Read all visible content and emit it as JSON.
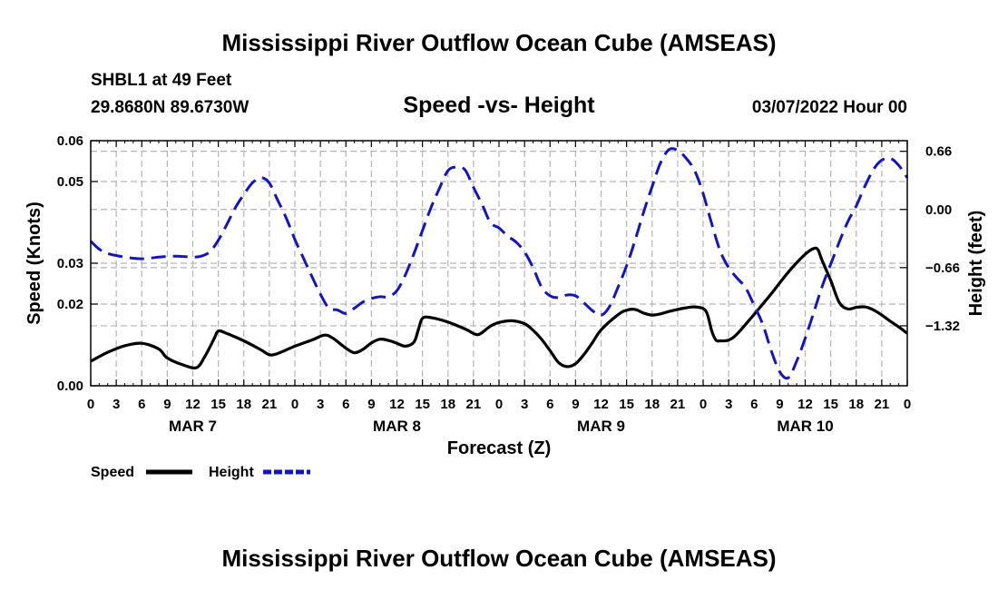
{
  "page": {
    "main_title": "Mississippi River Outflow Ocean Cube (AMSEAS)",
    "repeat_title": "Mississippi River Outflow Ocean Cube (AMSEAS)",
    "station": "SHBL1 at 49 Feet",
    "location": "29.8680N  89.6730W",
    "timestamp": "03/07/2022 Hour 00"
  },
  "colors": {
    "speed": "#000000",
    "height": "#1515c0",
    "grid": "#b4b4b4"
  },
  "chart_data": {
    "type": "line",
    "title": "Speed -vs- Height",
    "xlabel": "Forecast (Z)",
    "ylabel": "Speed (Knots)",
    "y2label": "Height (feet)",
    "x_hours_from_start": [
      0,
      96
    ],
    "x_tick_hours": [
      0,
      3,
      6,
      9,
      12,
      15,
      18,
      21,
      24,
      27,
      30,
      33,
      36,
      39,
      42,
      45,
      48,
      51,
      54,
      57,
      60,
      63,
      66,
      69,
      72,
      75,
      78,
      81,
      84,
      87,
      90,
      93,
      96
    ],
    "x_tick_labels": [
      "0",
      "3",
      "6",
      "9",
      "12",
      "15",
      "18",
      "21",
      "0",
      "3",
      "6",
      "9",
      "12",
      "15",
      "18",
      "21",
      "0",
      "3",
      "6",
      "9",
      "12",
      "15",
      "18",
      "21",
      "0",
      "3",
      "6",
      "9",
      "12",
      "15",
      "18",
      "21",
      "0"
    ],
    "date_labels": [
      {
        "label": "MAR 7",
        "hour": 12
      },
      {
        "label": "MAR 8",
        "hour": 36
      },
      {
        "label": "MAR 9",
        "hour": 60
      },
      {
        "label": "MAR 10",
        "hour": 84
      }
    ],
    "ylim": [
      0,
      0.06
    ],
    "y_ticks": [
      0,
      0.02,
      0.03,
      0.05,
      0.06
    ],
    "y_tick_labels": [
      "0.00",
      "0.02",
      "0.03",
      "0.05",
      "0.06"
    ],
    "y2lim": [
      -2.0,
      0.78
    ],
    "y2_ticks": [
      -1.32,
      -0.66,
      0,
      0.66
    ],
    "y2_tick_labels": [
      "−1.32",
      "−0.66",
      "0.00",
      "0.66"
    ],
    "series": [
      {
        "name": "Speed",
        "axis": "left",
        "style": "solid",
        "points": [
          [
            0,
            0.006
          ],
          [
            2,
            0.0082
          ],
          [
            4,
            0.0098
          ],
          [
            6,
            0.0104
          ],
          [
            8,
            0.009
          ],
          [
            9,
            0.0068
          ],
          [
            11,
            0.005
          ],
          [
            12.5,
            0.0045
          ],
          [
            13.5,
            0.0075
          ],
          [
            14.5,
            0.0115
          ],
          [
            15,
            0.0134
          ],
          [
            16,
            0.0128
          ],
          [
            18,
            0.011
          ],
          [
            20,
            0.0088
          ],
          [
            21,
            0.0076
          ],
          [
            22,
            0.0079
          ],
          [
            24,
            0.0097
          ],
          [
            26,
            0.0112
          ],
          [
            27.5,
            0.0124
          ],
          [
            28.5,
            0.0116
          ],
          [
            30,
            0.0092
          ],
          [
            31,
            0.0081
          ],
          [
            32,
            0.0089
          ],
          [
            33,
            0.0105
          ],
          [
            34,
            0.0114
          ],
          [
            35,
            0.0111
          ],
          [
            36,
            0.0104
          ],
          [
            37,
            0.0097
          ],
          [
            38,
            0.0107
          ],
          [
            38.5,
            0.0136
          ],
          [
            39,
            0.0165
          ],
          [
            40,
            0.0167
          ],
          [
            42,
            0.0156
          ],
          [
            44,
            0.0139
          ],
          [
            45,
            0.0128
          ],
          [
            45.5,
            0.0125
          ],
          [
            46,
            0.013
          ],
          [
            47,
            0.0146
          ],
          [
            48,
            0.0155
          ],
          [
            49.5,
            0.0159
          ],
          [
            51,
            0.0152
          ],
          [
            52,
            0.0136
          ],
          [
            53,
            0.0114
          ],
          [
            54,
            0.0086
          ],
          [
            55,
            0.0057
          ],
          [
            56,
            0.0047
          ],
          [
            57,
            0.0054
          ],
          [
            58,
            0.0077
          ],
          [
            59,
            0.0106
          ],
          [
            60,
            0.0137
          ],
          [
            62,
            0.0174
          ],
          [
            63,
            0.0185
          ],
          [
            64,
            0.0187
          ],
          [
            65,
            0.0178
          ],
          [
            66,
            0.0173
          ],
          [
            67,
            0.0176
          ],
          [
            68,
            0.0182
          ],
          [
            69,
            0.0187
          ],
          [
            70,
            0.0191
          ],
          [
            71,
            0.0193
          ],
          [
            72,
            0.0189
          ],
          [
            72.5,
            0.0175
          ],
          [
            73,
            0.0135
          ],
          [
            73.5,
            0.0112
          ],
          [
            74,
            0.011
          ],
          [
            75,
            0.0112
          ],
          [
            76,
            0.0127
          ],
          [
            78,
            0.0175
          ],
          [
            80,
            0.0225
          ],
          [
            82,
            0.0278
          ],
          [
            84,
            0.0322
          ],
          [
            85,
            0.0336
          ],
          [
            85.5,
            0.0333
          ],
          [
            86,
            0.0306
          ],
          [
            87,
            0.0258
          ],
          [
            88,
            0.0204
          ],
          [
            89,
            0.0188
          ],
          [
            90,
            0.0192
          ],
          [
            91,
            0.0193
          ],
          [
            92,
            0.0186
          ],
          [
            93,
            0.0173
          ],
          [
            94,
            0.0158
          ],
          [
            95,
            0.0144
          ],
          [
            96,
            0.0128
          ]
        ]
      },
      {
        "name": "Height",
        "axis": "right",
        "style": "dashed",
        "points": [
          [
            0,
            -0.36
          ],
          [
            1,
            -0.45
          ],
          [
            2,
            -0.5
          ],
          [
            4,
            -0.54
          ],
          [
            6,
            -0.56
          ],
          [
            8,
            -0.54
          ],
          [
            10,
            -0.53
          ],
          [
            12,
            -0.54
          ],
          [
            13,
            -0.53
          ],
          [
            14,
            -0.48
          ],
          [
            15,
            -0.35
          ],
          [
            16,
            -0.17
          ],
          [
            17,
            0.02
          ],
          [
            18,
            0.17
          ],
          [
            19,
            0.3
          ],
          [
            20,
            0.36
          ],
          [
            21,
            0.3
          ],
          [
            22,
            0.1
          ],
          [
            23,
            -0.1
          ],
          [
            24,
            -0.34
          ],
          [
            25,
            -0.55
          ],
          [
            26,
            -0.76
          ],
          [
            27,
            -0.96
          ],
          [
            28,
            -1.12
          ],
          [
            29,
            -1.14
          ],
          [
            30,
            -1.18
          ],
          [
            31,
            -1.12
          ],
          [
            32,
            -1.05
          ],
          [
            33,
            -1.01
          ],
          [
            34,
            -0.99
          ],
          [
            35,
            -0.99
          ],
          [
            36,
            -0.92
          ],
          [
            37,
            -0.74
          ],
          [
            38,
            -0.5
          ],
          [
            39,
            -0.24
          ],
          [
            40,
            0.02
          ],
          [
            41,
            0.24
          ],
          [
            42,
            0.44
          ],
          [
            43,
            0.48
          ],
          [
            44,
            0.45
          ],
          [
            45,
            0.25
          ],
          [
            46,
            0.06
          ],
          [
            47,
            -0.15
          ],
          [
            48,
            -0.21
          ],
          [
            49,
            -0.3
          ],
          [
            50,
            -0.37
          ],
          [
            51,
            -0.48
          ],
          [
            52,
            -0.66
          ],
          [
            53,
            -0.88
          ],
          [
            54,
            -0.98
          ],
          [
            55,
            -1.0
          ],
          [
            56,
            -0.97
          ],
          [
            57,
            -0.98
          ],
          [
            58,
            -1.06
          ],
          [
            59,
            -1.15
          ],
          [
            60,
            -1.2
          ],
          [
            61,
            -1.1
          ],
          [
            62,
            -0.88
          ],
          [
            63,
            -0.64
          ],
          [
            64,
            -0.35
          ],
          [
            65,
            -0.03
          ],
          [
            66,
            0.26
          ],
          [
            67,
            0.53
          ],
          [
            68,
            0.68
          ],
          [
            69,
            0.67
          ],
          [
            70,
            0.58
          ],
          [
            71,
            0.44
          ],
          [
            72,
            0.18
          ],
          [
            73,
            -0.16
          ],
          [
            74,
            -0.47
          ],
          [
            75,
            -0.66
          ],
          [
            76,
            -0.78
          ],
          [
            77,
            -0.89
          ],
          [
            78,
            -1.09
          ],
          [
            79,
            -1.3
          ],
          [
            80,
            -1.6
          ],
          [
            81,
            -1.84
          ],
          [
            82,
            -1.91
          ],
          [
            83,
            -1.72
          ],
          [
            84,
            -1.46
          ],
          [
            85,
            -1.17
          ],
          [
            86,
            -0.87
          ],
          [
            87,
            -0.62
          ],
          [
            88,
            -0.37
          ],
          [
            89,
            -0.14
          ],
          [
            90,
            0.04
          ],
          [
            91,
            0.26
          ],
          [
            92,
            0.45
          ],
          [
            93,
            0.56
          ],
          [
            94,
            0.58
          ],
          [
            95,
            0.5
          ],
          [
            96,
            0.36
          ]
        ]
      }
    ],
    "legend": [
      {
        "label": "Speed",
        "style": "solid"
      },
      {
        "label": "Height",
        "style": "dashed"
      }
    ]
  }
}
